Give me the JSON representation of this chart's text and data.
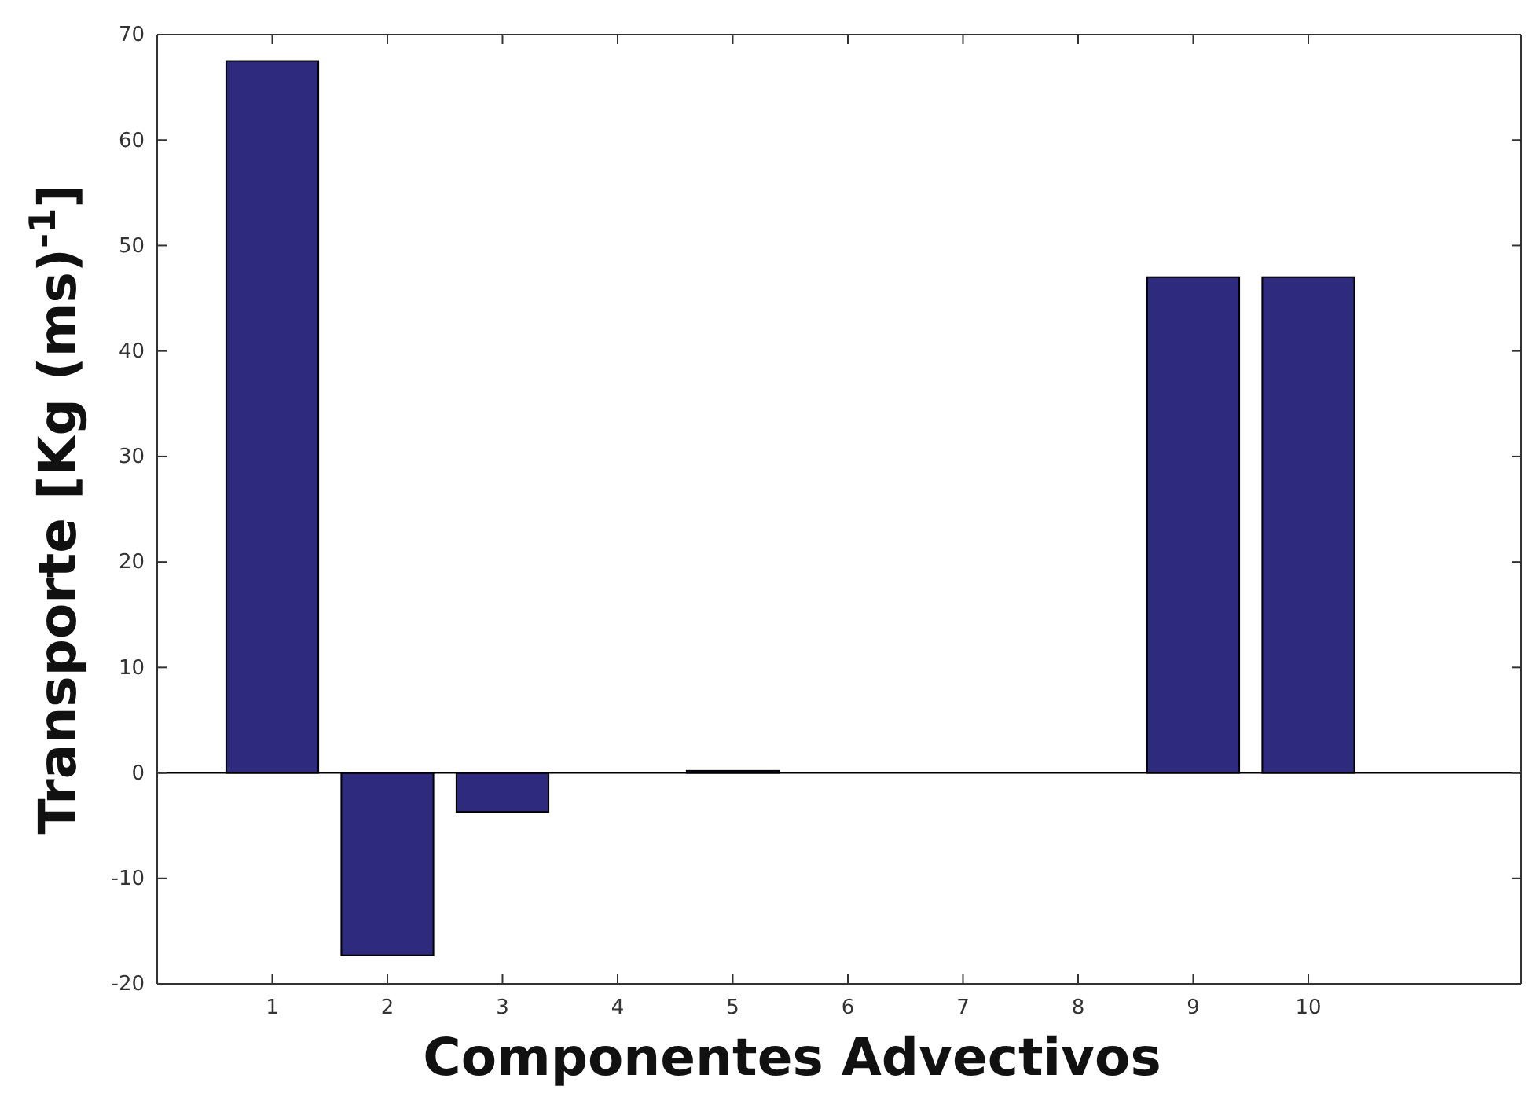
{
  "chart_data": {
    "type": "bar",
    "xlabel": "Componentes Advectivos",
    "ylabel": "Transporte [Kg (ms)$^{-1}$]",
    "x": [
      1,
      2,
      3,
      4,
      5,
      6,
      7,
      8,
      9,
      10
    ],
    "values": [
      67.5,
      -17.3,
      -3.7,
      0,
      0.2,
      0,
      0,
      0,
      47,
      47
    ],
    "color": "#2e2a7e",
    "xlim": [
      0,
      11.85
    ],
    "xticks": [
      1,
      2,
      3,
      4,
      5,
      6,
      7,
      8,
      9,
      10
    ],
    "ylim": [
      -20,
      70
    ],
    "yticks": [
      -20,
      -10,
      0,
      10,
      20,
      30,
      40,
      50,
      60,
      70
    ]
  }
}
